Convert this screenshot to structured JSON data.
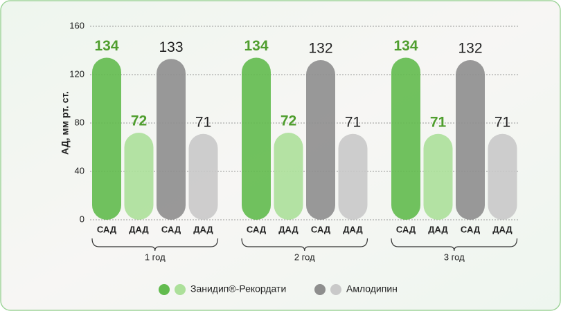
{
  "chart_data": {
    "type": "bar",
    "ylabel": "АД, мм рт. ст.",
    "categories": [
      "1 год",
      "2 год",
      "3 год"
    ],
    "groups": [
      {
        "name": "Занидип®-Рекордати",
        "value_color": "#4f9e2e",
        "series": [
          {
            "label": "САД",
            "color": "#62bb4e",
            "values": [
              134,
              134,
              134
            ]
          },
          {
            "label": "ДАД",
            "color": "#ace09a",
            "values": [
              72,
              72,
              71
            ]
          }
        ]
      },
      {
        "name": "Амлодипин",
        "value_color": "#222222",
        "series": [
          {
            "label": "САД",
            "color": "#8e8e8e",
            "values": [
              133,
              132,
              132
            ]
          },
          {
            "label": "ДАД",
            "color": "#c9c9c9",
            "values": [
              71,
              71,
              71
            ]
          }
        ]
      }
    ],
    "ylim": [
      0,
      160
    ],
    "yticks": [
      0,
      40,
      80,
      120,
      160
    ],
    "grid": true
  }
}
